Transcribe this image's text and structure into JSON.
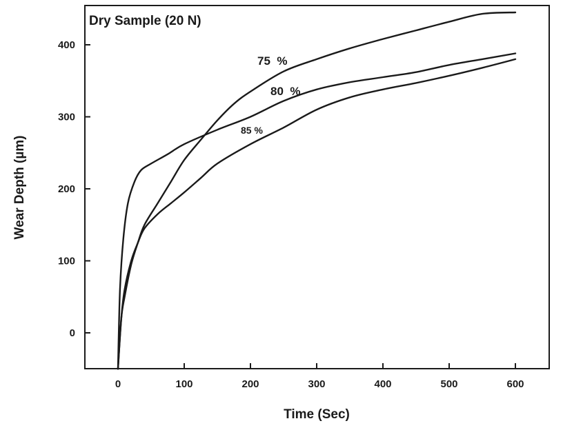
{
  "chart_data": {
    "type": "line",
    "title": "Dry Sample (20 N)",
    "xlabel": "Time (Sec)",
    "ylabel": "Wear Depth (µm)",
    "xlim": [
      -50,
      650
    ],
    "ylim": [
      -50,
      450
    ],
    "xticks": [
      0,
      100,
      200,
      300,
      400,
      500,
      600
    ],
    "yticks": [
      0,
      100,
      200,
      300,
      400
    ],
    "grid": false,
    "legend": "none",
    "series": [
      {
        "name": "75 %",
        "x": [
          0,
          5,
          10,
          20,
          30,
          40,
          60,
          80,
          100,
          125,
          150,
          175,
          200,
          250,
          300,
          350,
          400,
          450,
          500,
          550,
          600
        ],
        "y": [
          -50,
          20,
          50,
          95,
          125,
          150,
          180,
          210,
          240,
          268,
          295,
          318,
          335,
          363,
          380,
          395,
          408,
          420,
          432,
          443,
          445
        ]
      },
      {
        "name": "80 %",
        "x": [
          0,
          3,
          8,
          15,
          25,
          35,
          50,
          75,
          100,
          150,
          200,
          250,
          300,
          350,
          400,
          450,
          500,
          550,
          600
        ],
        "y": [
          -50,
          60,
          130,
          180,
          210,
          226,
          235,
          248,
          262,
          282,
          300,
          322,
          338,
          348,
          355,
          362,
          372,
          380,
          388
        ]
      },
      {
        "name": "85 %",
        "x": [
          0,
          5,
          10,
          20,
          30,
          40,
          60,
          80,
          100,
          125,
          150,
          200,
          250,
          300,
          350,
          400,
          450,
          500,
          550,
          600
        ],
        "y": [
          -50,
          20,
          60,
          100,
          125,
          145,
          165,
          180,
          195,
          215,
          235,
          262,
          285,
          310,
          327,
          338,
          347,
          357,
          368,
          380
        ]
      }
    ],
    "annotations": [
      {
        "text": "75  %",
        "series": "75 %"
      },
      {
        "text": "80  %",
        "series": "80 %"
      },
      {
        "text": "85 %",
        "series": "85 %"
      }
    ]
  }
}
